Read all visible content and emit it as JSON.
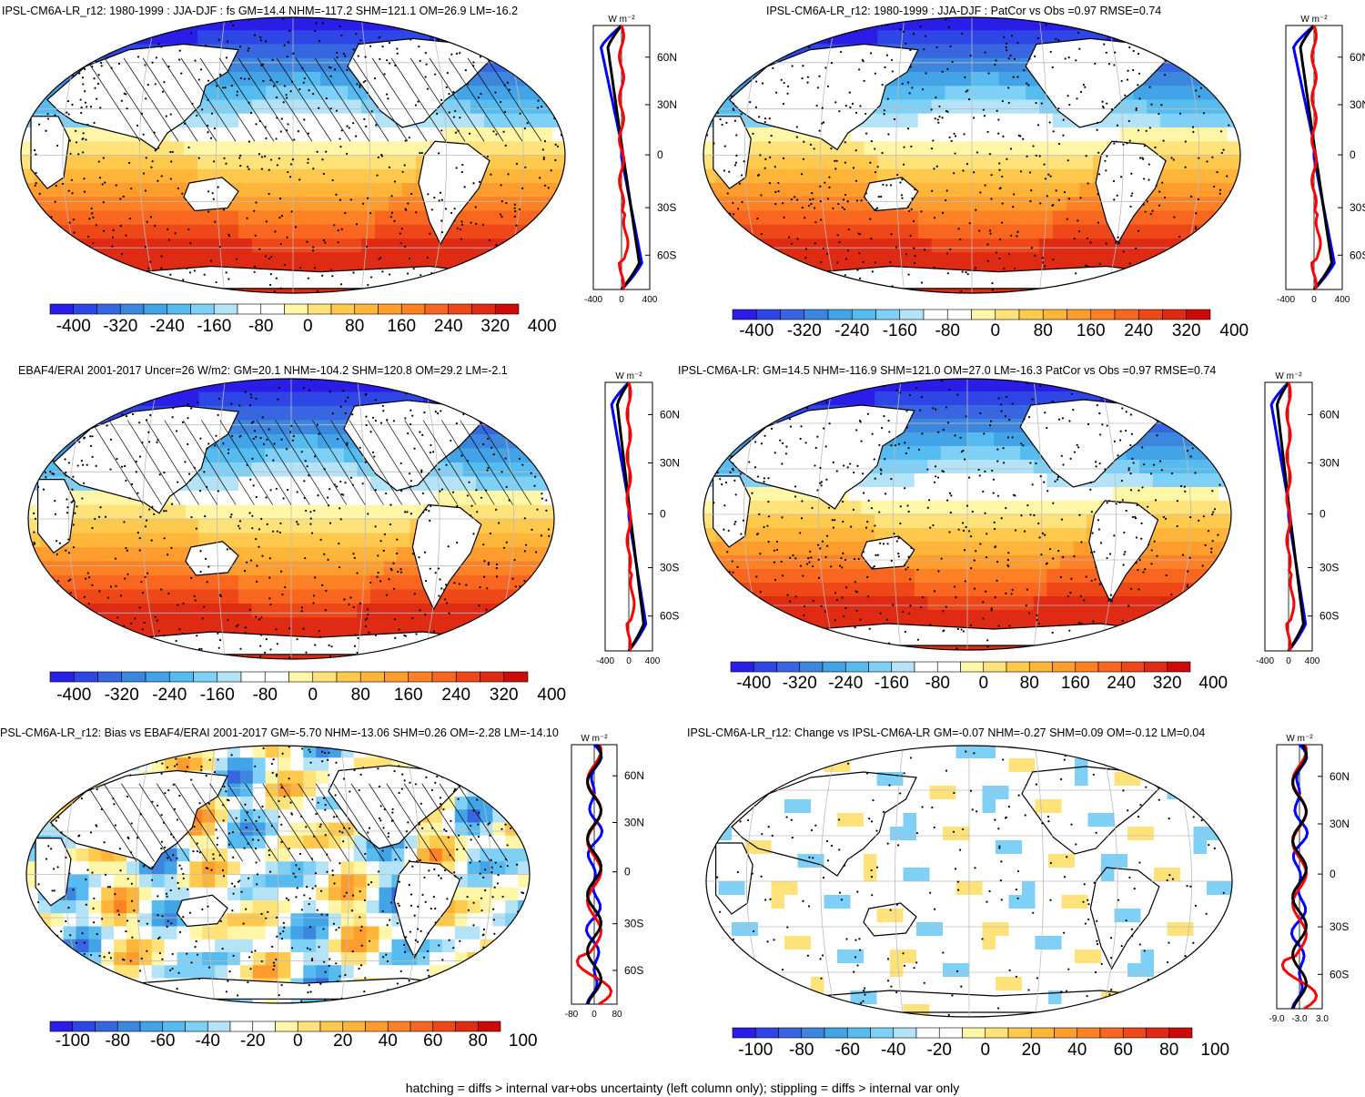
{
  "panels": [
    {
      "title": "IPSL-CM6A-LR_r12: 1980-1999 : JJA-DJF : fs GM=14.4 NHM=-117.2 SHM=121.1 OM=26.9 LM=-16.2",
      "colorbar_labels": [
        "-400",
        "-320",
        "-240",
        "-160",
        "-80",
        "0",
        "80",
        "160",
        "240",
        "320",
        "400"
      ],
      "profile_unit": "W m⁻²",
      "profile_lat_labels": [
        "60N",
        "30N",
        "0",
        "30S",
        "60S"
      ],
      "profile_x_labels": [
        "-400",
        "0",
        "400"
      ]
    },
    {
      "title": "IPSL-CM6A-LR_r12: 1980-1999 : JJA-DJF : PatCor vs Obs =0.97 RMSE=0.74",
      "colorbar_labels": [
        "-400",
        "-320",
        "-240",
        "-160",
        "-80",
        "0",
        "80",
        "160",
        "240",
        "320",
        "400"
      ],
      "profile_unit": "W m⁻²",
      "profile_lat_labels": [
        "60N",
        "30N",
        "0",
        "30S",
        "60S"
      ],
      "profile_x_labels": [
        "-400",
        "0",
        "400"
      ]
    },
    {
      "title": "EBAF4/ERAI 2001-2017 Uncer=26 W/m2: GM=20.1 NHM=-104.2 SHM=120.8 OM=29.2 LM=-2.1",
      "colorbar_labels": [
        "-400",
        "-320",
        "-240",
        "-160",
        "-80",
        "0",
        "80",
        "160",
        "240",
        "320",
        "400"
      ],
      "profile_unit": "W m⁻²",
      "profile_lat_labels": [
        "60N",
        "30N",
        "0",
        "30S",
        "60S"
      ],
      "profile_x_labels": [
        "-400",
        "0",
        "400"
      ]
    },
    {
      "title": "IPSL-CM6A-LR: GM=14.5 NHM=-116.9 SHM=121.0 OM=27.0 LM=-16.3 PatCor vs Obs =0.97 RMSE=0.74",
      "colorbar_labels": [
        "-400",
        "-320",
        "-240",
        "-160",
        "-80",
        "0",
        "80",
        "160",
        "240",
        "320",
        "400"
      ],
      "profile_unit": "W m⁻²",
      "profile_lat_labels": [
        "60N",
        "30N",
        "0",
        "30S",
        "60S"
      ],
      "profile_x_labels": [
        "-400",
        "0",
        "400"
      ]
    },
    {
      "title": "PSL-CM6A-LR_r12: Bias vs EBAF4/ERAI 2001-2017 GM=-5.70 NHM=-13.06 SHM=0.26 OM=-2.28 LM=-14.10",
      "colorbar_labels": [
        "-100",
        "-80",
        "-60",
        "-40",
        "-20",
        "0",
        "20",
        "40",
        "60",
        "80",
        "100"
      ],
      "profile_unit": "W m⁻²",
      "profile_lat_labels": [
        "60N",
        "30N",
        "0",
        "30S",
        "60S"
      ],
      "profile_x_labels": [
        "-80",
        "0",
        "80"
      ]
    },
    {
      "title": "IPSL-CM6A-LR_r12: Change vs IPSL-CM6A-LR GM=-0.07 NHM=-0.27 SHM=0.09 OM=-0.12 LM=0.04",
      "colorbar_labels": [
        "-100",
        "-80",
        "-60",
        "-40",
        "-20",
        "0",
        "20",
        "40",
        "60",
        "80",
        "100"
      ],
      "profile_unit": "W m⁻²",
      "profile_lat_labels": [
        "60N",
        "30N",
        "0",
        "30S",
        "60S"
      ],
      "profile_x_labels": [
        "-9.0",
        "-3.0",
        "3.0"
      ]
    }
  ],
  "colors": {
    "diverging": [
      "#2b1de8",
      "#2f46e6",
      "#3866e0",
      "#3d86de",
      "#42a4e6",
      "#56bcef",
      "#7fd0f6",
      "#b4e3f7",
      "#ffffff",
      "#ffffff",
      "#fff6a8",
      "#ffe37a",
      "#ffc94d",
      "#ffb43a",
      "#ff9c2e",
      "#ff8126",
      "#f9661f",
      "#ee4718",
      "#df2a14",
      "#cc0a0a"
    ],
    "profile_red": "#ff0000",
    "profile_blue": "#0000ff",
    "profile_black": "#000000"
  },
  "footnote": "hatching = diffs > internal var+obs uncertainty (left column only); stippling = diffs > internal var only"
}
